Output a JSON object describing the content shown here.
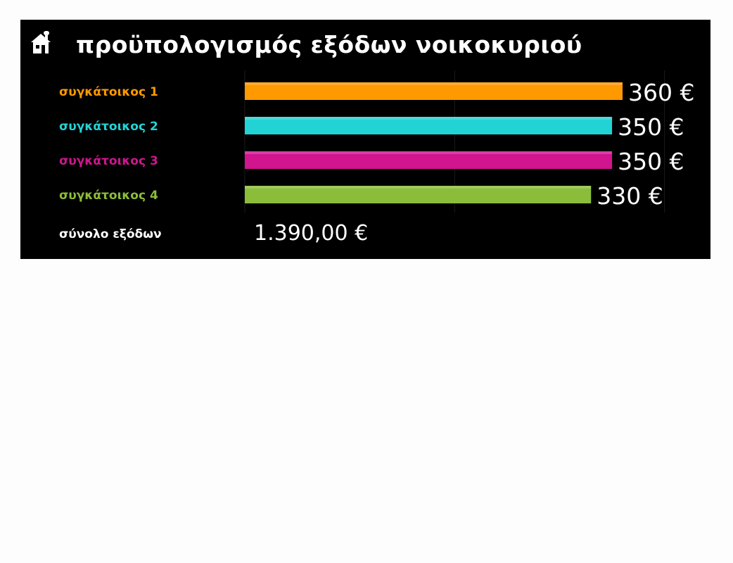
{
  "header": {
    "title": "προϋπολογισμός εξόδων νοικοκυριού",
    "icon": "home-icon"
  },
  "chart_data": {
    "type": "bar",
    "orientation": "horizontal",
    "categories": [
      "συγκάτοικος 1",
      "συγκάτοικος 2",
      "συγκάτοικος 3",
      "συγκάτοικος 4"
    ],
    "values": [
      360,
      350,
      350,
      330
    ],
    "value_labels": [
      "360 €",
      "350 €",
      "350 €",
      "330 €"
    ],
    "colors": [
      "#ff9900",
      "#22d3d6",
      "#d0158f",
      "#8cbd3a"
    ],
    "title": "προϋπολογισμός εξόδων νοικοκυριού",
    "xlim": [
      0,
      400
    ],
    "grid": true,
    "legend": "none"
  },
  "summary": {
    "total_label": "σύνολο εξόδων",
    "total_value": "1.390,00 €"
  },
  "colors": {
    "background": "#000000",
    "text": "#ffffff",
    "gridline": "#1c1c1c"
  }
}
